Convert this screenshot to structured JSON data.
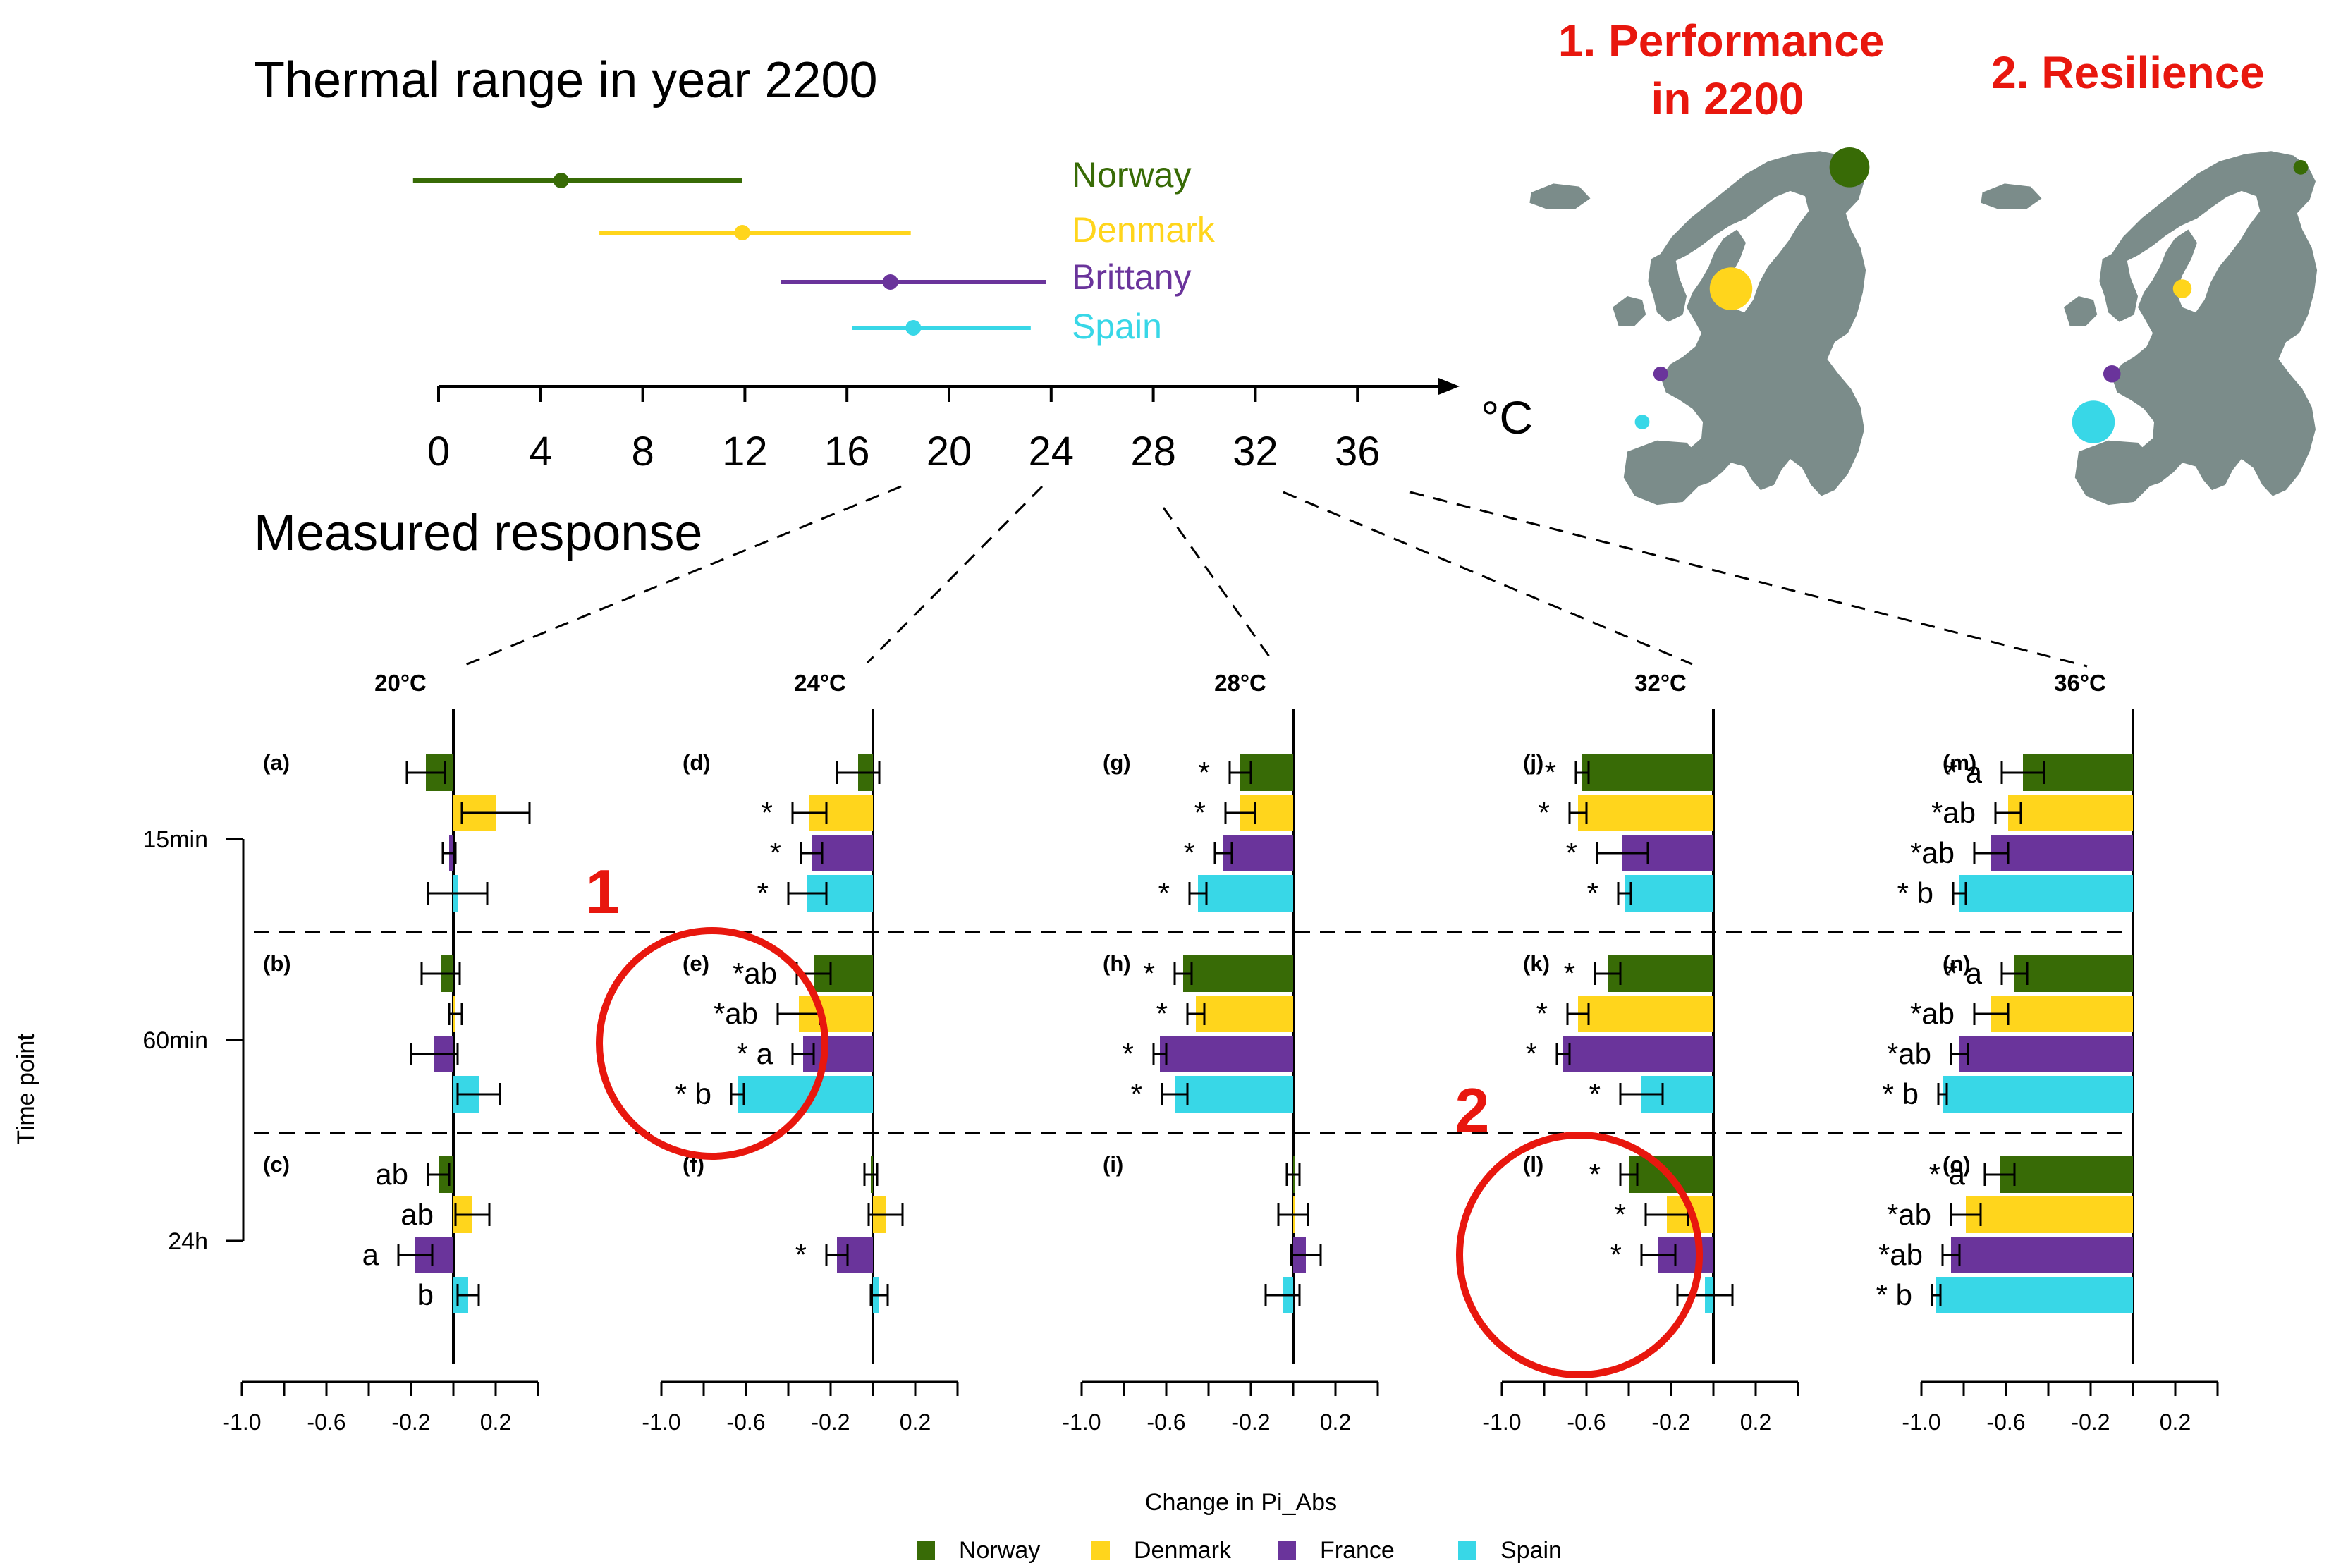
{
  "thermal": {
    "title": "Thermal range in year 2200",
    "unit": "°C",
    "ticks": [
      0,
      4,
      8,
      12,
      16,
      20,
      24,
      28,
      32,
      36
    ],
    "xlim": [
      0,
      39
    ],
    "ranges": [
      {
        "name": "Norway",
        "min": -1,
        "mean": 4.8,
        "max": 11.9,
        "color": "#386b06"
      },
      {
        "name": "Denmark",
        "min": 6.3,
        "mean": 11.9,
        "max": 18.5,
        "color": "#ffd51c"
      },
      {
        "name": "Brittany",
        "min": 13.4,
        "mean": 17.7,
        "max": 23.8,
        "color": "#6a349b"
      },
      {
        "name": "Spain",
        "min": 16.2,
        "mean": 18.6,
        "max": 23.2,
        "color": "#38d7e7"
      }
    ]
  },
  "maps": {
    "performance_label": "1.  Performance\nin 2200",
    "resilience_label": "2.  Resilience",
    "label_color": "#e8170e",
    "performance_dots": [
      {
        "site": "Norway",
        "size": 3.0,
        "color": "#386b06"
      },
      {
        "site": "Denmark",
        "size": 3.2,
        "color": "#ffd51c"
      },
      {
        "site": "Brittany",
        "size": 1.1,
        "color": "#6a349b"
      },
      {
        "site": "Spain",
        "size": 1.1,
        "color": "#38d7e7"
      }
    ],
    "resilience_dots": [
      {
        "site": "Norway",
        "size": 1.1,
        "color": "#386b06"
      },
      {
        "site": "Denmark",
        "size": 1.4,
        "color": "#ffd51c"
      },
      {
        "site": "Brittany",
        "size": 1.3,
        "color": "#6a349b"
      },
      {
        "site": "Spain",
        "size": 3.2,
        "color": "#38d7e7"
      }
    ]
  },
  "measured_title": "Measured response",
  "chart_data": {
    "type": "bar",
    "orientation": "horizontal",
    "xlabel": "Change in Pi_Abs",
    "ylabel": "Time point",
    "xlim": [
      -1.0,
      0.4
    ],
    "xticks": [
      -1.0,
      -0.8,
      -0.6,
      -0.4,
      -0.2,
      0.0,
      0.2,
      0.4
    ],
    "xtick_labels": [
      "-1.0",
      "-0.6",
      "-0.2",
      "0.2"
    ],
    "time_points": [
      "15min",
      "60min",
      "24h"
    ],
    "series": [
      {
        "name": "Norway",
        "color": "#386b06"
      },
      {
        "name": "Denmark",
        "color": "#ffd51c"
      },
      {
        "name": "France",
        "color": "#6a349b"
      },
      {
        "name": "Spain",
        "color": "#38d7e7"
      }
    ],
    "temperatures": [
      {
        "label": "20°C",
        "panels": [
          {
            "tag": "(a)",
            "bars": [
              {
                "value": -0.13,
                "err": 0.09,
                "sig": ""
              },
              {
                "value": 0.2,
                "err": 0.16,
                "sig": ""
              },
              {
                "value": -0.02,
                "err": 0.03,
                "sig": ""
              },
              {
                "value": 0.02,
                "err": 0.14,
                "sig": ""
              }
            ]
          },
          {
            "tag": "(b)",
            "bars": [
              {
                "value": -0.06,
                "err": 0.09,
                "sig": ""
              },
              {
                "value": 0.01,
                "err": 0.03,
                "sig": ""
              },
              {
                "value": -0.09,
                "err": 0.11,
                "sig": ""
              },
              {
                "value": 0.12,
                "err": 0.1,
                "sig": ""
              }
            ]
          },
          {
            "tag": "(c)",
            "bars": [
              {
                "value": -0.07,
                "err": 0.05,
                "sig": "ab"
              },
              {
                "value": 0.09,
                "err": 0.08,
                "sig": "ab"
              },
              {
                "value": -0.18,
                "err": 0.08,
                "sig": "a"
              },
              {
                "value": 0.07,
                "err": 0.05,
                "sig": "b"
              }
            ]
          }
        ]
      },
      {
        "label": "24°C",
        "panels": [
          {
            "tag": "(d)",
            "bars": [
              {
                "value": -0.07,
                "err": 0.1,
                "sig": ""
              },
              {
                "value": -0.3,
                "err": 0.08,
                "sig": "*"
              },
              {
                "value": -0.29,
                "err": 0.05,
                "sig": "*"
              },
              {
                "value": -0.31,
                "err": 0.09,
                "sig": "*"
              }
            ]
          },
          {
            "tag": "(e)",
            "bars": [
              {
                "value": -0.28,
                "err": 0.08,
                "sig": "*ab"
              },
              {
                "value": -0.35,
                "err": 0.1,
                "sig": "*ab"
              },
              {
                "value": -0.33,
                "err": 0.05,
                "sig": "* a"
              },
              {
                "value": -0.64,
                "err": 0.03,
                "sig": "* b"
              }
            ]
          },
          {
            "tag": "(f)",
            "bars": [
              {
                "value": -0.01,
                "err": 0.03,
                "sig": ""
              },
              {
                "value": 0.06,
                "err": 0.08,
                "sig": ""
              },
              {
                "value": -0.17,
                "err": 0.05,
                "sig": "*"
              },
              {
                "value": 0.03,
                "err": 0.04,
                "sig": ""
              }
            ]
          }
        ]
      },
      {
        "label": "28°C",
        "panels": [
          {
            "tag": "(g)",
            "bars": [
              {
                "value": -0.25,
                "err": 0.05,
                "sig": "*"
              },
              {
                "value": -0.25,
                "err": 0.07,
                "sig": "*"
              },
              {
                "value": -0.33,
                "err": 0.04,
                "sig": "*"
              },
              {
                "value": -0.45,
                "err": 0.04,
                "sig": "*"
              }
            ]
          },
          {
            "tag": "(h)",
            "bars": [
              {
                "value": -0.52,
                "err": 0.04,
                "sig": "*"
              },
              {
                "value": -0.46,
                "err": 0.04,
                "sig": "*"
              },
              {
                "value": -0.63,
                "err": 0.03,
                "sig": "*"
              },
              {
                "value": -0.56,
                "err": 0.06,
                "sig": "*"
              }
            ]
          },
          {
            "tag": "(i)",
            "bars": [
              {
                "value": 0.0,
                "err": 0.03,
                "sig": ""
              },
              {
                "value": 0.0,
                "err": 0.07,
                "sig": ""
              },
              {
                "value": 0.06,
                "err": 0.07,
                "sig": ""
              },
              {
                "value": -0.05,
                "err": 0.08,
                "sig": ""
              }
            ]
          }
        ]
      },
      {
        "label": "32°C",
        "panels": [
          {
            "tag": "(j)",
            "bars": [
              {
                "value": -0.62,
                "err": 0.03,
                "sig": "*"
              },
              {
                "value": -0.64,
                "err": 0.04,
                "sig": "*"
              },
              {
                "value": -0.43,
                "err": 0.12,
                "sig": "*"
              },
              {
                "value": -0.42,
                "err": 0.03,
                "sig": "*"
              }
            ]
          },
          {
            "tag": "(k)",
            "bars": [
              {
                "value": -0.5,
                "err": 0.06,
                "sig": "*"
              },
              {
                "value": -0.64,
                "err": 0.05,
                "sig": "*"
              },
              {
                "value": -0.71,
                "err": 0.03,
                "sig": "*"
              },
              {
                "value": -0.34,
                "err": 0.1,
                "sig": "*"
              }
            ]
          },
          {
            "tag": "(l)",
            "bars": [
              {
                "value": -0.4,
                "err": 0.04,
                "sig": "*"
              },
              {
                "value": -0.22,
                "err": 0.1,
                "sig": "*"
              },
              {
                "value": -0.26,
                "err": 0.08,
                "sig": "*"
              },
              {
                "value": -0.04,
                "err": 0.13,
                "sig": ""
              }
            ]
          }
        ]
      },
      {
        "label": "36°C",
        "panels": [
          {
            "tag": "(m)",
            "bars": [
              {
                "value": -0.52,
                "err": 0.1,
                "sig": "* a"
              },
              {
                "value": -0.59,
                "err": 0.06,
                "sig": "*ab"
              },
              {
                "value": -0.67,
                "err": 0.08,
                "sig": "*ab"
              },
              {
                "value": -0.82,
                "err": 0.03,
                "sig": "* b"
              }
            ]
          },
          {
            "tag": "(n)",
            "bars": [
              {
                "value": -0.56,
                "err": 0.06,
                "sig": "* a"
              },
              {
                "value": -0.67,
                "err": 0.08,
                "sig": "*ab"
              },
              {
                "value": -0.82,
                "err": 0.04,
                "sig": "*ab"
              },
              {
                "value": -0.9,
                "err": 0.02,
                "sig": "* b"
              }
            ]
          },
          {
            "tag": "(o)",
            "bars": [
              {
                "value": -0.63,
                "err": 0.07,
                "sig": "* a"
              },
              {
                "value": -0.79,
                "err": 0.07,
                "sig": "*ab"
              },
              {
                "value": -0.86,
                "err": 0.04,
                "sig": "*ab"
              },
              {
                "value": -0.93,
                "err": 0.02,
                "sig": "* b"
              }
            ]
          }
        ]
      }
    ]
  },
  "highlights": [
    {
      "label": "1",
      "color": "#e8170e"
    },
    {
      "label": "2",
      "color": "#e8170e"
    }
  ],
  "legend": [
    "Norway",
    "Denmark",
    "France",
    "Spain"
  ]
}
